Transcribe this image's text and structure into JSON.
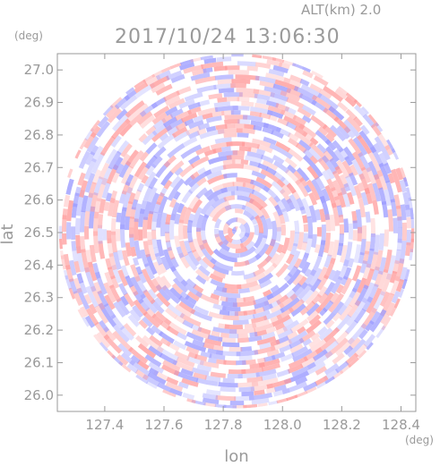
{
  "header": {
    "altitude": "ALT(km) 2.0",
    "datetime": "2017/10/24 13:06:30"
  },
  "chart_data": {
    "type": "heatmap",
    "title": "2017/10/24 13:06:30",
    "subtitle": "ALT(km) 2.0",
    "xlabel": "lon",
    "ylabel": "lat",
    "x_unit": "(deg)",
    "y_unit": "(deg)",
    "xlim": [
      127.24,
      128.45
    ],
    "ylim": [
      25.95,
      27.05
    ],
    "x_ticks": [
      "127.4",
      "127.6",
      "127.8",
      "128.0",
      "128.2",
      "128.4"
    ],
    "y_ticks": [
      "27.0",
      "26.9",
      "26.8",
      "26.7",
      "26.6",
      "26.5",
      "26.4",
      "26.3",
      "26.2",
      "26.1",
      "26.0"
    ],
    "center": [
      127.845,
      26.505
    ],
    "radius_deg": 0.6,
    "colors": {
      "positive": "#ff9a9a",
      "negative": "#9a9aff",
      "neutral": "#ffffff",
      "axis": "#9a9a9a"
    }
  }
}
